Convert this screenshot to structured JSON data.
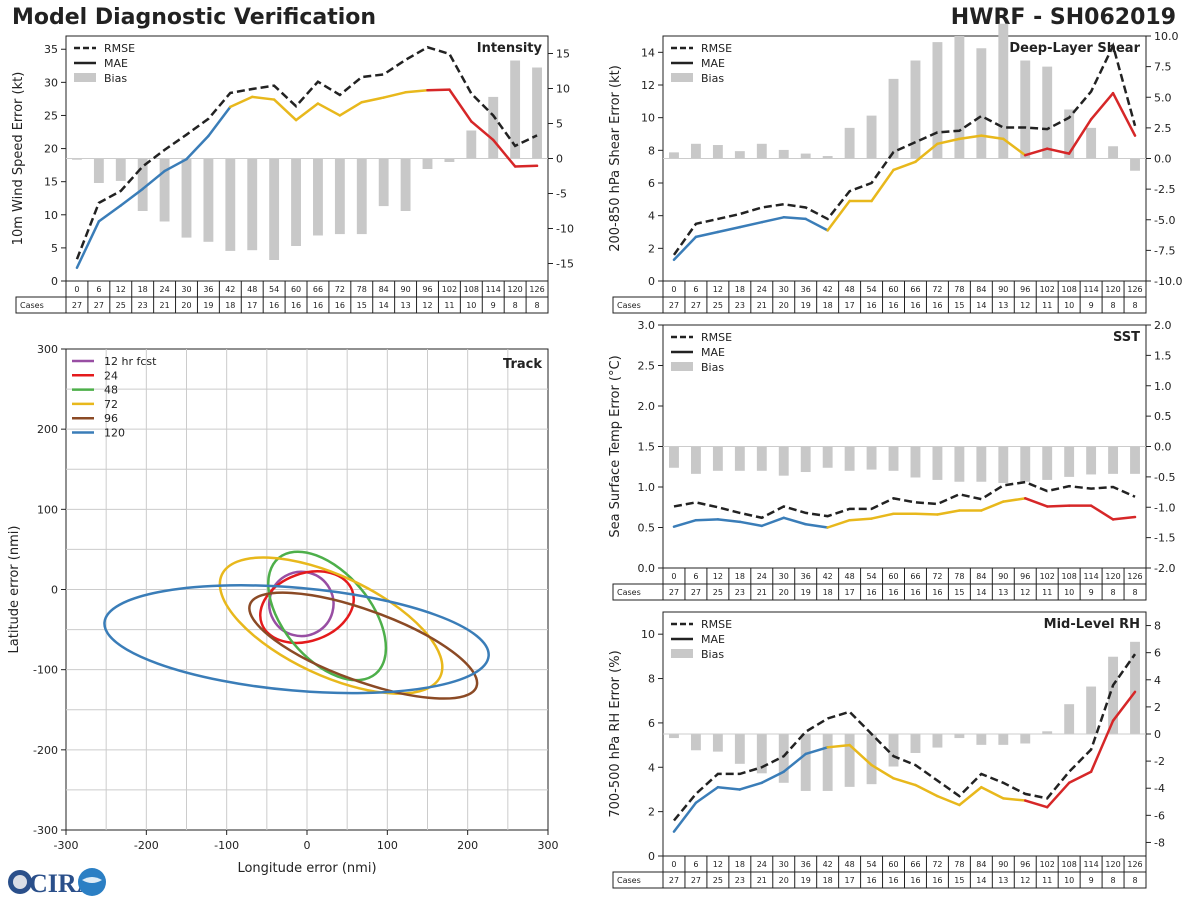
{
  "header": {
    "title": "Model Diagnostic Verification",
    "storm": "HWRF - SH062019"
  },
  "logo_text": "CIRA",
  "colors": {
    "rmse": "#222222",
    "mae_blue": "#3a7db8",
    "mae_yellow": "#e8b81c",
    "mae_red": "#d62728",
    "bias": "#c8c8c8",
    "track": [
      "#984ea3",
      "#e41a1c",
      "#4daf4a",
      "#e8b81c",
      "#8b4a25",
      "#3a7db8"
    ]
  },
  "legend_labels": {
    "rmse": "RMSE",
    "mae": "MAE",
    "bias": "Bias"
  },
  "cases_label": "Cases",
  "forecast_hours": [
    0,
    6,
    12,
    18,
    24,
    30,
    36,
    42,
    48,
    54,
    60,
    66,
    72,
    78,
    84,
    90,
    96,
    102,
    108,
    114,
    120,
    126
  ],
  "cases": [
    27,
    27,
    25,
    23,
    21,
    20,
    19,
    18,
    17,
    16,
    16,
    16,
    16,
    15,
    14,
    13,
    12,
    11,
    10,
    9,
    8,
    8
  ],
  "chart_data": [
    {
      "id": "intensity",
      "type": "line",
      "title": "Intensity",
      "ylabel": "10m Wind Speed Error (kt)",
      "ylim": [
        0,
        37
      ],
      "yticks": [
        0,
        5,
        10,
        15,
        20,
        25,
        30,
        35
      ],
      "y2lim": [
        -17.5,
        17.5
      ],
      "y2ticks": [
        -15,
        -10,
        -5,
        0,
        5,
        10,
        15
      ],
      "rmse": [
        3.3,
        11.8,
        13.6,
        17.3,
        19.8,
        22.1,
        24.5,
        28.4,
        29.0,
        29.5,
        26.4,
        30.1,
        28.1,
        30.8,
        31.2,
        33.4,
        35.3,
        34.3,
        28.3,
        25.0,
        20.4,
        22.0
      ],
      "mae": [
        2.0,
        9.0,
        11.4,
        13.9,
        16.6,
        18.4,
        21.9,
        26.3,
        27.8,
        27.4,
        24.3,
        26.8,
        25.0,
        27.0,
        27.7,
        28.5,
        28.8,
        28.9,
        24.1,
        21.3,
        17.3,
        17.4
      ],
      "bias": [
        0.0,
        -3.5,
        -3.2,
        -7.5,
        -9.0,
        -11.3,
        -11.9,
        -13.2,
        -13.1,
        -14.5,
        -12.5,
        -11.0,
        -10.8,
        -10.8,
        -6.8,
        -7.5,
        -1.5,
        -0.5,
        4.0,
        8.8,
        14.0,
        13.0
      ]
    },
    {
      "id": "shear",
      "type": "line",
      "title": "Deep-Layer Shear",
      "ylabel": "200-850 hPa Shear Error (kt)",
      "ylim": [
        0,
        15
      ],
      "yticks": [
        0,
        2,
        4,
        6,
        8,
        10,
        12,
        14
      ],
      "y2lim": [
        -10.0,
        10.0
      ],
      "y2ticks": [
        -10.0,
        -7.5,
        -5.0,
        -2.5,
        0.0,
        2.5,
        5.0,
        7.5,
        10.0
      ],
      "y2fmt": 1,
      "rmse": [
        1.6,
        3.5,
        3.8,
        4.1,
        4.5,
        4.7,
        4.5,
        3.8,
        5.5,
        6.0,
        7.9,
        8.5,
        9.1,
        9.2,
        10.1,
        9.4,
        9.4,
        9.3,
        10.0,
        11.6,
        14.4,
        9.5
      ],
      "mae": [
        1.3,
        2.7,
        3.0,
        3.3,
        3.6,
        3.9,
        3.8,
        3.1,
        4.9,
        4.9,
        6.8,
        7.3,
        8.4,
        8.7,
        8.9,
        8.7,
        7.7,
        8.1,
        7.8,
        9.9,
        11.5,
        8.9
      ],
      "bias": [
        0.5,
        1.2,
        1.1,
        0.6,
        1.2,
        0.7,
        0.4,
        0.2,
        2.5,
        3.5,
        6.5,
        8.0,
        9.5,
        10.0,
        9.0,
        11.0,
        8.0,
        7.5,
        4.0,
        2.5,
        1.0,
        -1.0
      ]
    },
    {
      "id": "sst",
      "type": "line",
      "title": "SST",
      "ylabel": "Sea Surface Temp Error (°C)",
      "ylim": [
        0.0,
        3.0
      ],
      "yticks": [
        0.0,
        0.5,
        1.0,
        1.5,
        2.0,
        2.5,
        3.0
      ],
      "yfmt": 1,
      "y2lim": [
        -2.0,
        2.0
      ],
      "y2ticks": [
        -2.0,
        -1.5,
        -1.0,
        -0.5,
        0.0,
        0.5,
        1.0,
        1.5,
        2.0
      ],
      "y2fmt": 1,
      "rmse": [
        0.76,
        0.81,
        0.75,
        0.68,
        0.62,
        0.76,
        0.68,
        0.64,
        0.73,
        0.73,
        0.86,
        0.81,
        0.79,
        0.91,
        0.85,
        1.02,
        1.06,
        0.95,
        1.01,
        0.98,
        1.0,
        0.88
      ],
      "mae": [
        0.51,
        0.59,
        0.6,
        0.57,
        0.52,
        0.62,
        0.54,
        0.5,
        0.59,
        0.61,
        0.67,
        0.67,
        0.66,
        0.71,
        0.71,
        0.82,
        0.86,
        0.76,
        0.77,
        0.77,
        0.6,
        0.63
      ],
      "bias": [
        -0.35,
        -0.45,
        -0.4,
        -0.4,
        -0.4,
        -0.48,
        -0.42,
        -0.35,
        -0.4,
        -0.38,
        -0.4,
        -0.51,
        -0.55,
        -0.58,
        -0.58,
        -0.6,
        -0.58,
        -0.55,
        -0.5,
        -0.46,
        -0.45,
        -0.45
      ]
    },
    {
      "id": "rh",
      "type": "line",
      "title": "Mid-Level RH",
      "ylabel": "700-500 hPa RH Error (%)",
      "ylim": [
        0,
        11
      ],
      "yticks": [
        0,
        2,
        4,
        6,
        8,
        10
      ],
      "y2lim": [
        -9,
        9
      ],
      "y2ticks": [
        -8,
        -6,
        -4,
        -2,
        0,
        2,
        4,
        6,
        8
      ],
      "rmse": [
        1.6,
        2.8,
        3.7,
        3.7,
        4.0,
        4.5,
        5.6,
        6.2,
        6.5,
        5.5,
        4.5,
        4.1,
        3.4,
        2.7,
        3.7,
        3.3,
        2.8,
        2.6,
        3.8,
        4.8,
        7.7,
        9.1
      ],
      "mae": [
        1.1,
        2.4,
        3.1,
        3.0,
        3.3,
        3.8,
        4.6,
        4.9,
        5.0,
        4.1,
        3.5,
        3.2,
        2.7,
        2.3,
        3.1,
        2.6,
        2.5,
        2.2,
        3.3,
        3.8,
        6.1,
        7.4
      ],
      "bias": [
        -0.3,
        -1.2,
        -1.3,
        -2.2,
        -2.9,
        -3.6,
        -4.2,
        -4.2,
        -3.9,
        -3.7,
        -2.4,
        -1.4,
        -1.0,
        -0.3,
        -0.8,
        -0.8,
        -0.7,
        0.2,
        2.2,
        3.5,
        5.7,
        6.8
      ]
    },
    {
      "id": "track",
      "type": "line",
      "title": "Track",
      "xlabel": "Longitude error (nmi)",
      "ylabel": "Latitude error (nmi)",
      "xlim": [
        -300,
        300
      ],
      "ylim": [
        -300,
        300
      ],
      "ticks": [
        -300,
        -200,
        -100,
        0,
        100,
        200,
        300
      ],
      "series": [
        {
          "name": "12 hr fcst",
          "cx": -7,
          "cy": -18,
          "a": 40,
          "b": 40,
          "rot": 75
        },
        {
          "name": "24",
          "cx": 0,
          "cy": -22,
          "a": 60,
          "b": 42,
          "rot": 20
        },
        {
          "name": "48",
          "cx": 25,
          "cy": -33,
          "a": 94,
          "b": 54,
          "rot": -50
        },
        {
          "name": "72",
          "cx": 30,
          "cy": -45,
          "a": 150,
          "b": 62,
          "rot": -25
        },
        {
          "name": "96",
          "cx": 70,
          "cy": -70,
          "a": 150,
          "b": 44,
          "rot": -20
        },
        {
          "name": "120",
          "cx": -13,
          "cy": -62,
          "a": 240,
          "b": 64,
          "rot": -5
        }
      ]
    }
  ]
}
